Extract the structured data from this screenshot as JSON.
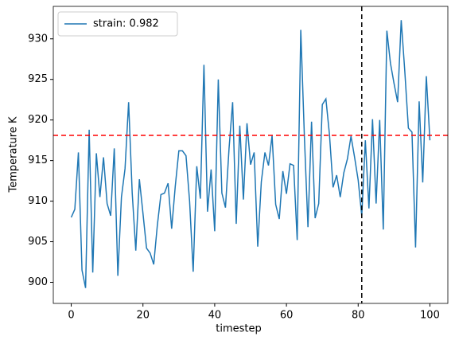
{
  "chart_data": {
    "type": "line",
    "xlabel": "timestep",
    "ylabel": "Temperature K",
    "x": [
      0,
      1,
      2,
      3,
      4,
      5,
      6,
      7,
      8,
      9,
      10,
      11,
      12,
      13,
      14,
      15,
      16,
      17,
      18,
      19,
      20,
      21,
      22,
      23,
      24,
      25,
      26,
      27,
      28,
      29,
      30,
      31,
      32,
      33,
      34,
      35,
      36,
      37,
      38,
      39,
      40,
      41,
      42,
      43,
      44,
      45,
      46,
      47,
      48,
      49,
      50,
      51,
      52,
      53,
      54,
      55,
      56,
      57,
      58,
      59,
      60,
      61,
      62,
      63,
      64,
      65,
      66,
      67,
      68,
      69,
      70,
      71,
      72,
      73,
      74,
      75,
      76,
      77,
      78,
      79,
      80,
      81,
      82,
      83,
      84,
      85,
      86,
      87,
      88,
      89,
      90,
      91,
      92,
      93,
      94,
      95,
      96,
      97,
      98,
      99,
      100
    ],
    "series": [
      {
        "name": "strain: 0.982",
        "color": "#1f77b4",
        "values": [
          908,
          909,
          916,
          901.5,
          899.3,
          918.8,
          901.2,
          915.9,
          910.5,
          915.4,
          909.7,
          908.2,
          916.5,
          900.8,
          910.5,
          914,
          922.2,
          911,
          903.9,
          912.7,
          908.5,
          904.2,
          903.6,
          902.2,
          907,
          910.8,
          911,
          912.2,
          906.6,
          911.8,
          916.2,
          916.2,
          915.6,
          910,
          901.3,
          914.3,
          910.3,
          926.8,
          908.7,
          913.9,
          906.3,
          925,
          911,
          909.2,
          916.5,
          922.2,
          907.2,
          919.3,
          910.2,
          919.6,
          914.5,
          916,
          904.4,
          912.4,
          916,
          914.4,
          918.1,
          909.6,
          907.8,
          913.7,
          910.9,
          914.6,
          914.4,
          905.2,
          931.1,
          918,
          906.8,
          919.8,
          907.9,
          909.7,
          921.9,
          922.6,
          918.2,
          911.7,
          913.2,
          910.5,
          913.5,
          915.2,
          918,
          915.4,
          912.6,
          908.2,
          917.5,
          909.1,
          920.1,
          909.7,
          920,
          906.5,
          931,
          927,
          924.5,
          922.2,
          932.3,
          926,
          919,
          918.5,
          904.3,
          922.3,
          912.3,
          925.4,
          917.5
        ]
      }
    ],
    "hline": {
      "value": 918.1,
      "color": "#ff0000"
    },
    "vline": {
      "value": 81,
      "color": "#000000"
    },
    "xlim": [
      -5,
      105
    ],
    "ylim": [
      897.4,
      934.0
    ],
    "xticks": [
      0,
      20,
      40,
      60,
      80,
      100
    ],
    "yticks": [
      900,
      905,
      910,
      915,
      920,
      925,
      930
    ],
    "legend": "upper left"
  }
}
